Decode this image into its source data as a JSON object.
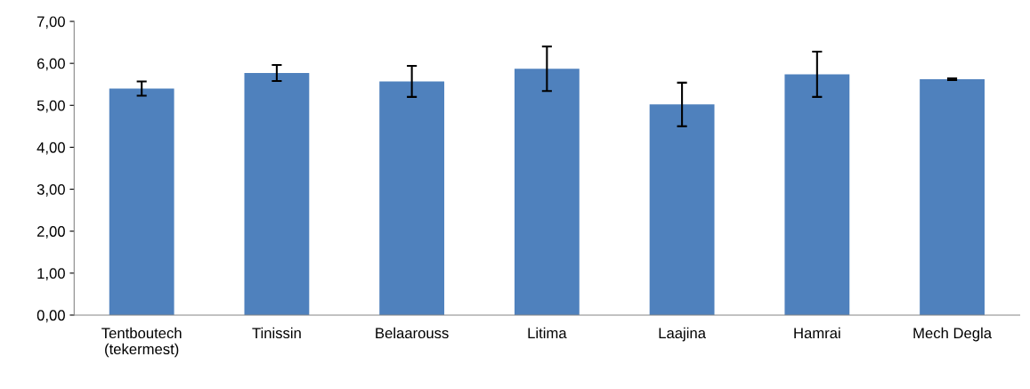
{
  "chart_data": {
    "type": "bar",
    "categories": [
      "Tentboutech\n(tekermest)",
      "Tinissin",
      "Belaarouss",
      "Litima",
      "Laajina",
      "Hamrai",
      "Mech Degla"
    ],
    "values": [
      5.4,
      5.77,
      5.57,
      5.87,
      5.02,
      5.74,
      5.62
    ],
    "errors": [
      0.17,
      0.19,
      0.37,
      0.53,
      0.52,
      0.54,
      0.02
    ],
    "color": "#4f81bd",
    "ylim": [
      0,
      7
    ],
    "yticks": [
      {
        "value": 0,
        "label": "0,00"
      },
      {
        "value": 1,
        "label": "1,00"
      },
      {
        "value": 2,
        "label": "2,00"
      },
      {
        "value": 3,
        "label": "3,00"
      },
      {
        "value": 4,
        "label": "4,00"
      },
      {
        "value": 5,
        "label": "5,00"
      },
      {
        "value": 6,
        "label": "6,00"
      },
      {
        "value": 7,
        "label": "7,00"
      }
    ],
    "grid": false
  }
}
